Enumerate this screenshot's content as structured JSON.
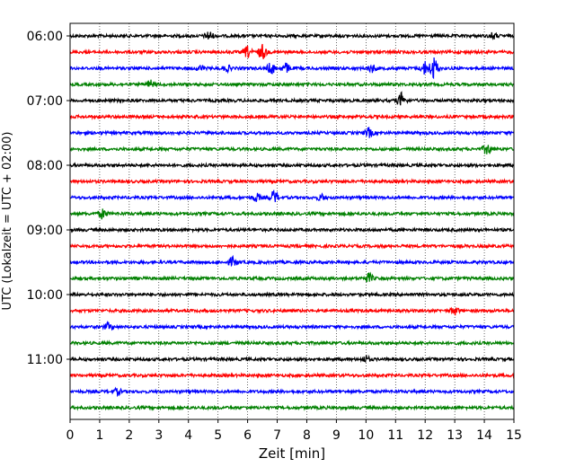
{
  "chart_data": {
    "type": "line",
    "title": "",
    "xlabel": "Zeit  [min]",
    "ylabel": "UTC (Lokalzeit = UTC + 02:00)",
    "xlim": [
      0,
      15
    ],
    "xticks": [
      "0",
      "1",
      "2",
      "3",
      "4",
      "5",
      "6",
      "7",
      "8",
      "9",
      "10",
      "11",
      "12",
      "13",
      "14",
      "15"
    ],
    "yticks": [
      "06:00",
      "07:00",
      "08:00",
      "09:00",
      "10:00",
      "11:00"
    ],
    "grid": "vertical dotted at each minute",
    "colors": [
      "#000000",
      "#ff0000",
      "#0000ff",
      "#008000"
    ],
    "trace_interval_min": 15,
    "traces": [
      {
        "start": "06:00",
        "color": "#000000",
        "events": [
          {
            "t": 4.7,
            "amp": 5
          },
          {
            "t": 14.3,
            "amp": 3
          }
        ]
      },
      {
        "start": "06:15",
        "color": "#ff0000",
        "events": [
          {
            "t": 6.0,
            "amp": 6
          },
          {
            "t": 6.5,
            "amp": 8
          }
        ]
      },
      {
        "start": "06:30",
        "color": "#0000ff",
        "events": [
          {
            "t": 6.8,
            "amp": 6
          },
          {
            "t": 7.3,
            "amp": 5
          },
          {
            "t": 5.3,
            "amp": 3
          },
          {
            "t": 10.2,
            "amp": 4
          },
          {
            "t": 12.3,
            "amp": 12
          },
          {
            "t": 12.0,
            "amp": 7
          },
          {
            "t": 4.4,
            "amp": 3
          }
        ]
      },
      {
        "start": "06:45",
        "color": "#008000",
        "events": [
          {
            "t": 2.7,
            "amp": 4
          }
        ]
      },
      {
        "start": "07:00",
        "color": "#000000",
        "events": [
          {
            "t": 11.2,
            "amp": 8
          }
        ]
      },
      {
        "start": "07:15",
        "color": "#ff0000",
        "events": []
      },
      {
        "start": "07:30",
        "color": "#0000ff",
        "events": [
          {
            "t": 10.1,
            "amp": 5
          }
        ]
      },
      {
        "start": "07:45",
        "color": "#008000",
        "events": [
          {
            "t": 14.1,
            "amp": 6
          }
        ]
      },
      {
        "start": "08:00",
        "color": "#000000",
        "events": []
      },
      {
        "start": "08:15",
        "color": "#ff0000",
        "events": []
      },
      {
        "start": "08:30",
        "color": "#0000ff",
        "events": [
          {
            "t": 6.9,
            "amp": 7
          },
          {
            "t": 6.3,
            "amp": 4
          },
          {
            "t": 8.5,
            "amp": 3
          }
        ]
      },
      {
        "start": "08:45",
        "color": "#008000",
        "events": [
          {
            "t": 1.1,
            "amp": 5
          }
        ]
      },
      {
        "start": "09:00",
        "color": "#000000",
        "events": []
      },
      {
        "start": "09:15",
        "color": "#ff0000",
        "events": []
      },
      {
        "start": "09:30",
        "color": "#0000ff",
        "events": [
          {
            "t": 5.5,
            "amp": 5
          }
        ]
      },
      {
        "start": "09:45",
        "color": "#008000",
        "events": [
          {
            "t": 10.1,
            "amp": 5
          }
        ]
      },
      {
        "start": "10:00",
        "color": "#000000",
        "events": []
      },
      {
        "start": "10:15",
        "color": "#ff0000",
        "events": [
          {
            "t": 13.0,
            "amp": 4
          }
        ]
      },
      {
        "start": "10:30",
        "color": "#0000ff",
        "events": [
          {
            "t": 1.3,
            "amp": 4
          }
        ]
      },
      {
        "start": "10:45",
        "color": "#008000",
        "events": []
      },
      {
        "start": "11:00",
        "color": "#000000",
        "events": [
          {
            "t": 10.0,
            "amp": 3
          }
        ]
      },
      {
        "start": "11:15",
        "color": "#ff0000",
        "events": []
      },
      {
        "start": "11:30",
        "color": "#0000ff",
        "events": [
          {
            "t": 1.6,
            "amp": 3
          }
        ]
      },
      {
        "start": "11:45",
        "color": "#008000",
        "events": []
      }
    ]
  }
}
